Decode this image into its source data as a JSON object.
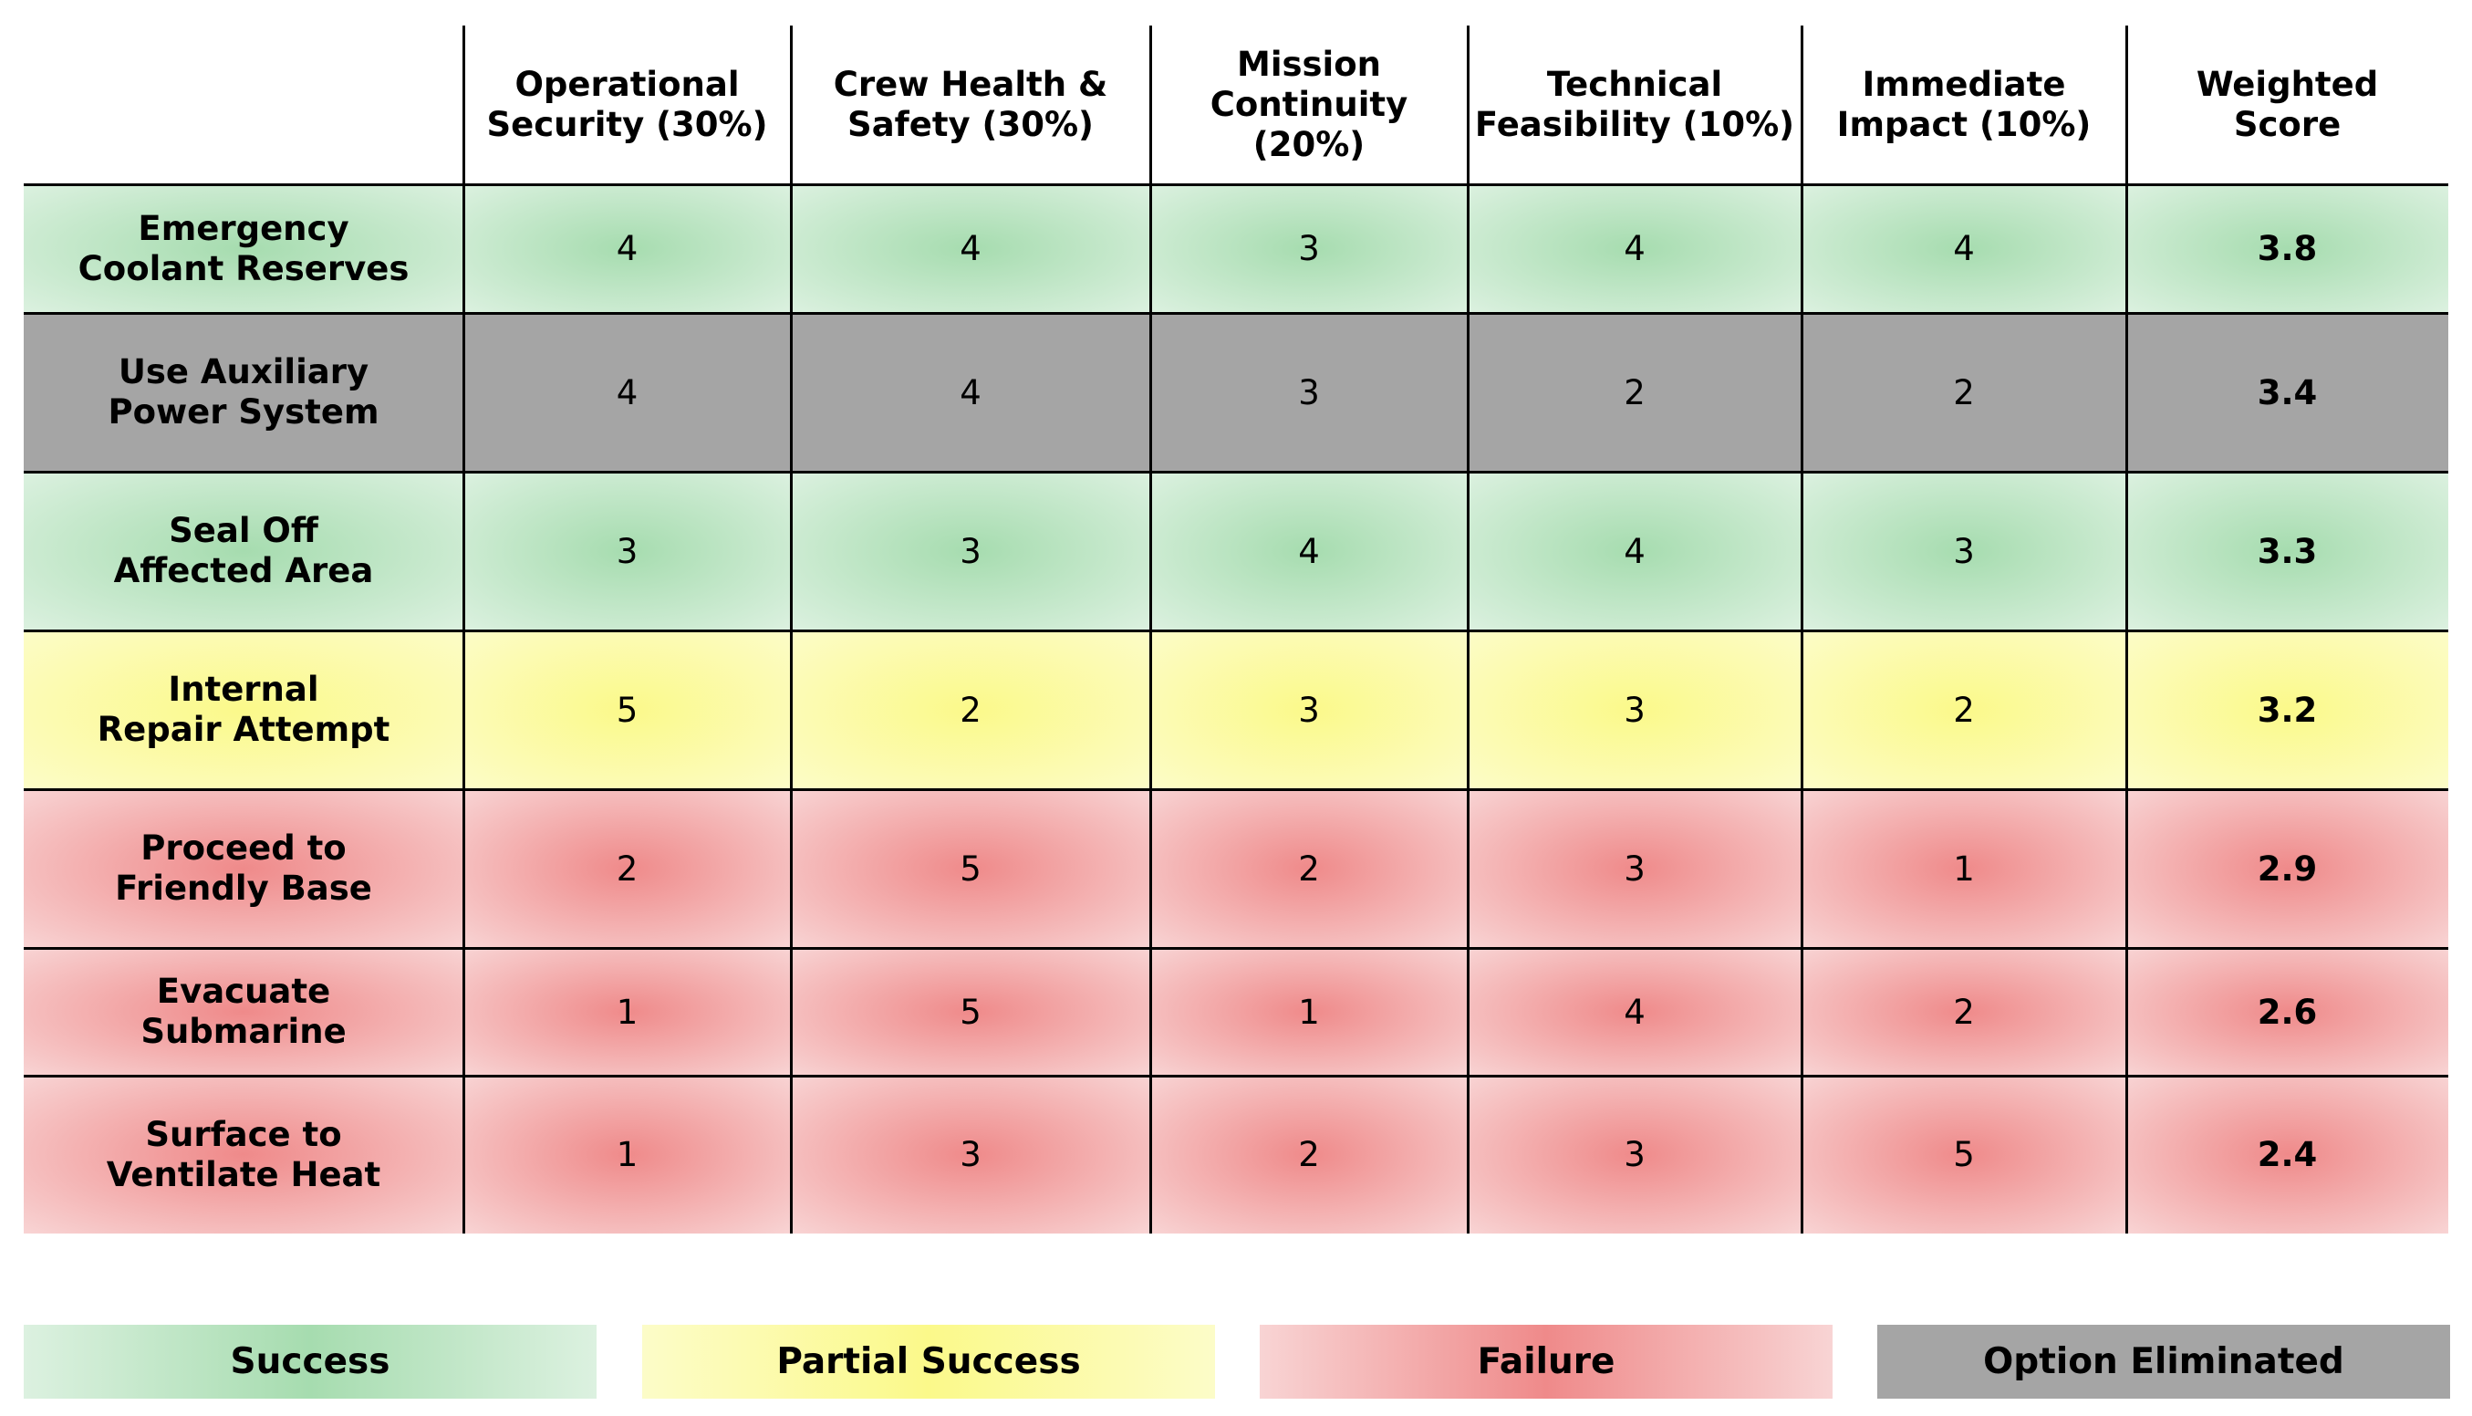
{
  "chart_data": {
    "type": "table",
    "corner_label": "",
    "columns": [
      "Operational Security (30%)",
      "Crew Health & Safety (30%)",
      "Mission Continuity (20%)",
      "Technical Feasibility (10%)",
      "Immediate Impact (10%)",
      "Weighted Score"
    ],
    "column_lines": [
      [
        "Operational",
        "Security (30%)"
      ],
      [
        "Crew Health &",
        "Safety (30%)"
      ],
      [
        "Mission",
        "Continuity (20%)"
      ],
      [
        "Technical",
        "Feasibility (10%)"
      ],
      [
        "Immediate",
        "Impact (10%)"
      ],
      [
        "Weighted",
        "Score"
      ]
    ],
    "rows": [
      {
        "label": "Emergency Coolant Reserves",
        "label_lines": [
          "Emergency",
          "Coolant Reserves"
        ],
        "status": "success",
        "values": [
          "4",
          "4",
          "3",
          "4",
          "4"
        ],
        "score": "3.8"
      },
      {
        "label": "Use Auxiliary Power System",
        "label_lines": [
          "Use Auxiliary",
          "Power System"
        ],
        "status": "eliminated",
        "values": [
          "4",
          "4",
          "3",
          "2",
          "2"
        ],
        "score": "3.4"
      },
      {
        "label": "Seal Off Affected Area",
        "label_lines": [
          "Seal Off",
          "Affected Area"
        ],
        "status": "success",
        "values": [
          "3",
          "3",
          "4",
          "4",
          "3"
        ],
        "score": "3.3"
      },
      {
        "label": "Internal Repair Attempt",
        "label_lines": [
          "Internal",
          "Repair Attempt"
        ],
        "status": "partial",
        "values": [
          "5",
          "2",
          "3",
          "3",
          "2"
        ],
        "score": "3.2"
      },
      {
        "label": "Proceed to Friendly Base",
        "label_lines": [
          "Proceed to",
          "Friendly Base"
        ],
        "status": "failure",
        "values": [
          "2",
          "5",
          "2",
          "3",
          "1"
        ],
        "score": "2.9"
      },
      {
        "label": "Evacuate Submarine",
        "label_lines": [
          "Evacuate",
          "Submarine"
        ],
        "status": "failure",
        "values": [
          "1",
          "5",
          "1",
          "4",
          "2"
        ],
        "score": "2.6"
      },
      {
        "label": "Surface to Ventilate Heat",
        "label_lines": [
          "Surface to",
          "Ventilate Heat"
        ],
        "status": "failure",
        "values": [
          "1",
          "3",
          "2",
          "3",
          "5"
        ],
        "score": "2.4"
      }
    ],
    "legend": [
      {
        "label": "Success",
        "status": "success",
        "color": "#a6dcaf"
      },
      {
        "label": "Partial Success",
        "status": "partial",
        "color": "#fbf98a"
      },
      {
        "label": "Failure",
        "status": "failure",
        "color": "#ef8a8a"
      },
      {
        "label": "Option Eliminated",
        "status": "eliminated",
        "color": "#a5a5a5"
      }
    ],
    "colors": {
      "success": "#a6dcaf",
      "partial": "#fbf98a",
      "failure": "#ef8a8a",
      "eliminated": "#a5a5a5",
      "grid": "#000000"
    }
  }
}
